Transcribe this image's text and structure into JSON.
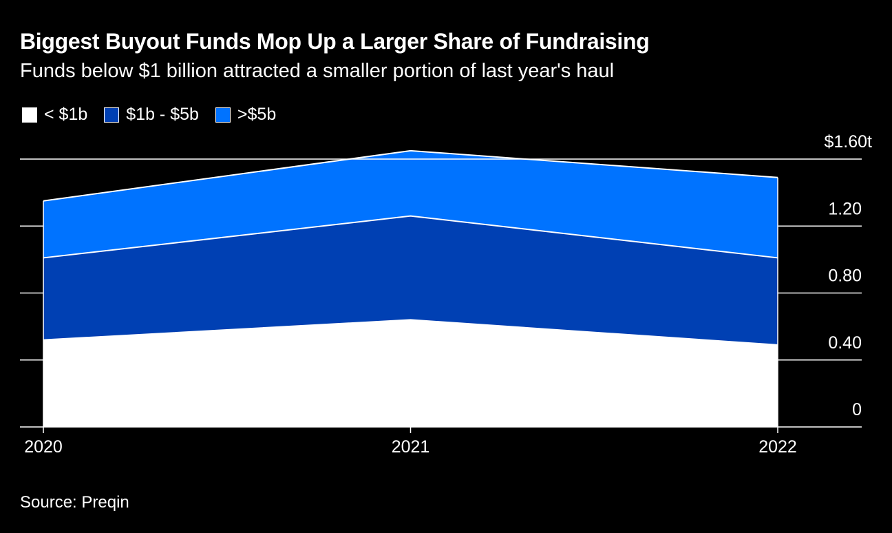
{
  "chart_data": {
    "type": "area",
    "stacked": true,
    "title": "Biggest Buyout Funds Mop Up a Larger Share of Fundraising",
    "subtitle": "Funds below $1 billion attracted a smaller portion of last year's haul",
    "categories": [
      "2020",
      "2021",
      "2022"
    ],
    "series": [
      {
        "name": "< $1b",
        "color": "#ffffff",
        "values": [
          0.52,
          0.64,
          0.49
        ]
      },
      {
        "name": "$1b - $5b",
        "color": "#0040b3",
        "values": [
          0.49,
          0.62,
          0.52
        ]
      },
      {
        "name": ">$5b",
        "color": "#0073ff",
        "values": [
          0.34,
          0.39,
          0.48
        ]
      }
    ],
    "y_unit": "t",
    "y_ticks": [
      0,
      0.4,
      0.8,
      1.2,
      1.6
    ],
    "y_tick_labels": [
      "0",
      "0.40",
      "0.80",
      "1.20",
      "$1.60t"
    ],
    "ylim": [
      0,
      1.6
    ],
    "xlabel": "",
    "ylabel": "",
    "legend_position": "top-left",
    "source": "Source: Preqin"
  }
}
